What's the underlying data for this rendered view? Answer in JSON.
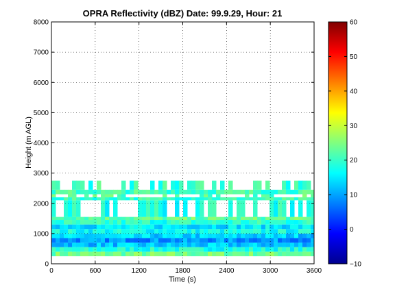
{
  "chart_data": {
    "type": "heatmap",
    "title": "OPRA Reflectivity (dBZ)  Date: 99.9.29, Hour: 21",
    "xlabel": "Time (s)",
    "ylabel": "Height (m AGL)",
    "xlim": [
      0,
      3600
    ],
    "ylim": [
      0,
      8000
    ],
    "xticks": [
      "0",
      "600",
      "1200",
      "1800",
      "2400",
      "3000",
      "3600"
    ],
    "yticks": [
      "0",
      "1000",
      "2000",
      "3000",
      "4000",
      "5000",
      "6000",
      "7000",
      "8000"
    ],
    "grid": true,
    "colorbar": {
      "range": [
        -10,
        60
      ],
      "ticks": [
        "-10",
        "0",
        "10",
        "20",
        "30",
        "40",
        "50",
        "60"
      ],
      "colormap": "jet"
    },
    "layers": [
      {
        "y_from": 250,
        "y_to": 400,
        "dbz": 24
      },
      {
        "y_from": 400,
        "y_to": 550,
        "dbz": 18
      },
      {
        "y_from": 550,
        "y_to": 700,
        "dbz": 12
      },
      {
        "y_from": 700,
        "y_to": 850,
        "dbz": 9
      },
      {
        "y_from": 850,
        "y_to": 1000,
        "dbz": 13
      },
      {
        "y_from": 1000,
        "y_to": 1150,
        "dbz": 17
      },
      {
        "y_from": 1150,
        "y_to": 1300,
        "dbz": 15
      },
      {
        "y_from": 1300,
        "y_to": 1450,
        "dbz": 19
      },
      {
        "y_from": 1450,
        "y_to": 1550,
        "dbz": 23
      },
      {
        "y_from": 1550,
        "y_to": 2100,
        "dbz": 18,
        "sparse": true
      },
      {
        "y_from": 2100,
        "y_to": 2200,
        "dbz": 20
      },
      {
        "y_from": 2200,
        "y_to": 2300,
        "dbz": 22,
        "sparse": true
      },
      {
        "y_from": 2300,
        "y_to": 2450,
        "dbz": 21
      },
      {
        "y_from": 2450,
        "y_to": 2750,
        "dbz": 20,
        "sparse": true
      }
    ],
    "colors": {
      "grid": "#000000",
      "background": "#ffffff"
    }
  }
}
